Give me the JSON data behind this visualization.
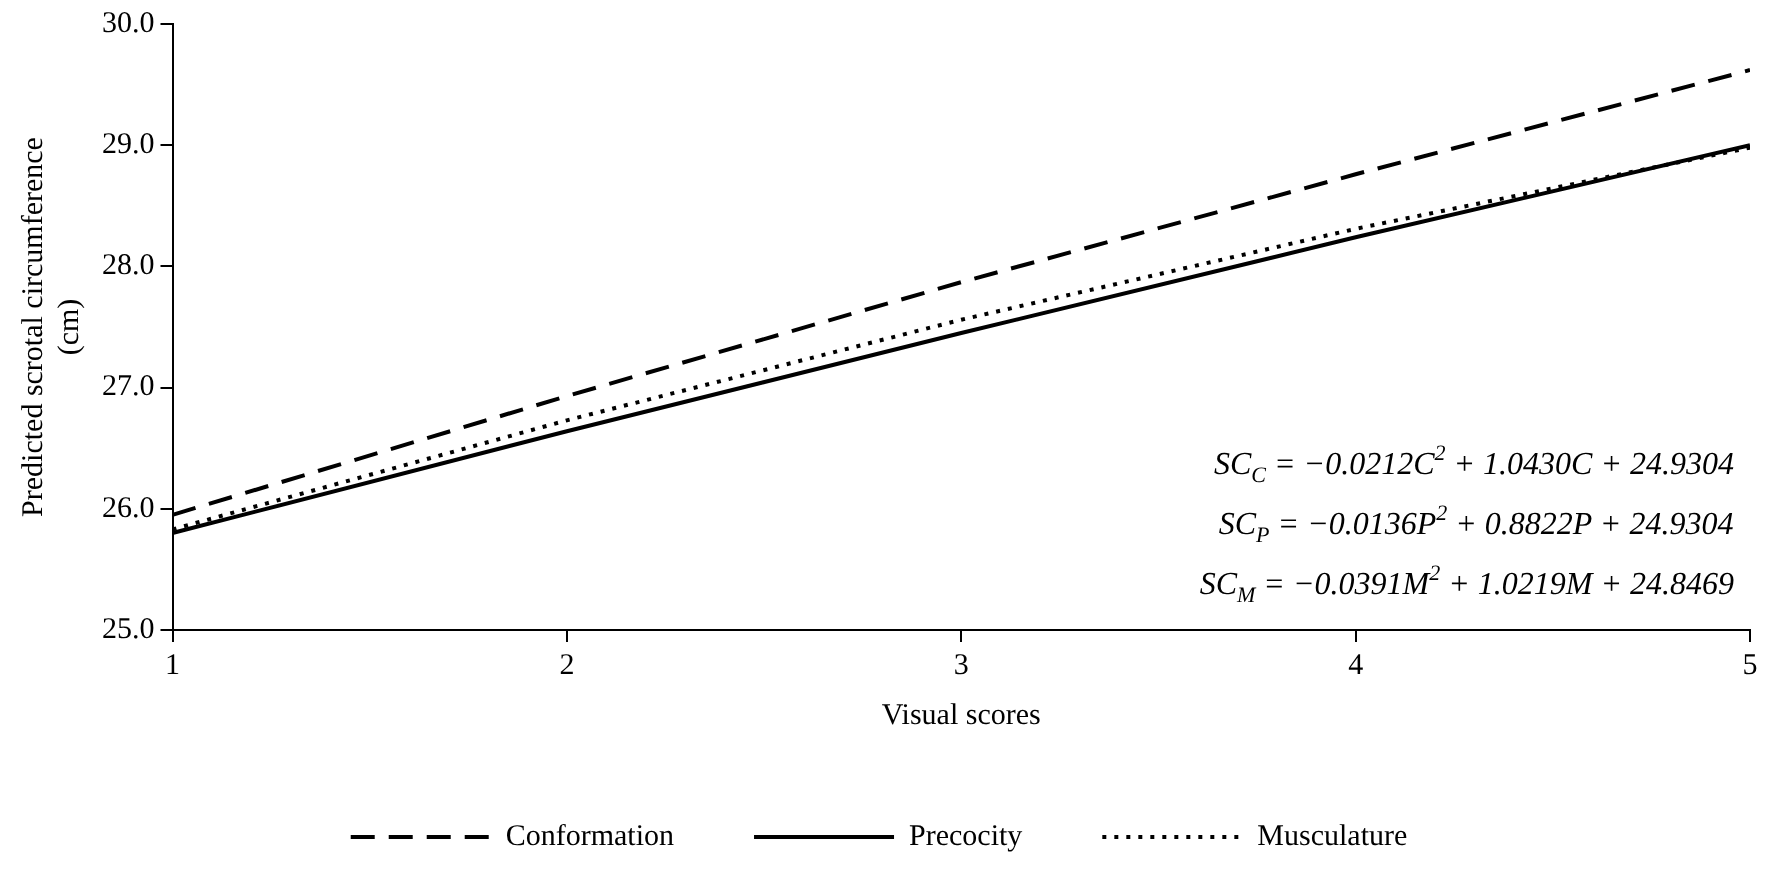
{
  "chart_data": {
    "type": "line",
    "xlabel": "Visual scores",
    "ylabel": "Predicted scrotal circumference\n(cm)",
    "x": [
      1,
      2,
      3,
      4,
      5
    ],
    "xlim": [
      1,
      5
    ],
    "xticks": [
      1,
      2,
      3,
      4,
      5
    ],
    "ylim": [
      25,
      30
    ],
    "yticks": [
      {
        "value": 25,
        "label": "25.0"
      },
      {
        "value": 26,
        "label": "26.0"
      },
      {
        "value": 27,
        "label": "27.0"
      },
      {
        "value": 28,
        "label": "28.0"
      },
      {
        "value": 29,
        "label": "29.0"
      },
      {
        "value": 30,
        "label": "30.0"
      }
    ],
    "series": [
      {
        "name": "Conformation",
        "color": "#000000",
        "line_style": "dashed",
        "values": [
          25.95,
          26.93,
          27.87,
          28.76,
          29.62
        ]
      },
      {
        "name": "Precocity",
        "color": "#000000",
        "line_style": "solid",
        "values": [
          25.8,
          26.64,
          27.45,
          28.24,
          29.0
        ]
      },
      {
        "name": "Musculature",
        "color": "#000000",
        "line_style": "dotted",
        "values": [
          25.83,
          26.73,
          27.56,
          28.31,
          28.98
        ]
      }
    ],
    "annotations": [
      "SC$_{C}$ = −0.0212C$^{2}$ + 1.0430C + 24.9304",
      "SC$_{P}$ = −0.0136P$^{2}$ + 0.8822P + 24.9304",
      "SC$_{M}$ = −0.0391M$^{2}$ + 1.0219M + 24.8469"
    ],
    "grid": false,
    "legend": "bottom",
    "marker": "none"
  }
}
